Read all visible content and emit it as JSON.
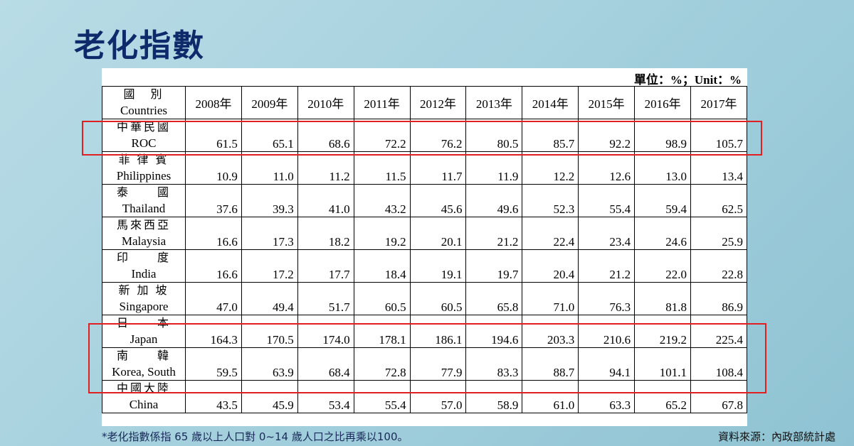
{
  "header": {
    "title": "老化指數",
    "unit": "單位：%；Unit：%"
  },
  "table": {
    "country_zh": "國　別",
    "country_en": "Countries",
    "years": [
      "2008年",
      "2009年",
      "2010年",
      "2011年",
      "2012年",
      "2013年",
      "2014年",
      "2015年",
      "2016年",
      "2017年"
    ],
    "rows": [
      {
        "zh": "中華民國",
        "en": "ROC",
        "values": [
          "61.5",
          "65.1",
          "68.6",
          "72.2",
          "76.2",
          "80.5",
          "85.7",
          "92.2",
          "98.9",
          "105.7"
        ]
      },
      {
        "zh": "菲 律 賓",
        "en": "Philippines",
        "values": [
          "10.9",
          "11.0",
          "11.2",
          "11.5",
          "11.7",
          "11.9",
          "12.2",
          "12.6",
          "13.0",
          "13.4"
        ]
      },
      {
        "zh": "泰　　國",
        "en": "Thailand",
        "values": [
          "37.6",
          "39.3",
          "41.0",
          "43.2",
          "45.6",
          "49.6",
          "52.3",
          "55.4",
          "59.4",
          "62.5"
        ]
      },
      {
        "zh": "馬來西亞",
        "en": "Malaysia",
        "values": [
          "16.6",
          "17.3",
          "18.2",
          "19.2",
          "20.1",
          "21.2",
          "22.4",
          "23.4",
          "24.6",
          "25.9"
        ]
      },
      {
        "zh": "印　　度",
        "en": "India",
        "values": [
          "16.6",
          "17.2",
          "17.7",
          "18.4",
          "19.1",
          "19.7",
          "20.4",
          "21.2",
          "22.0",
          "22.8"
        ]
      },
      {
        "zh": "新 加 坡",
        "en": "Singapore",
        "values": [
          "47.0",
          "49.4",
          "51.7",
          "60.5",
          "60.5",
          "65.8",
          "71.0",
          "76.3",
          "81.8",
          "86.9"
        ]
      },
      {
        "zh": "日　　本",
        "en": "Japan",
        "values": [
          "164.3",
          "170.5",
          "174.0",
          "178.1",
          "186.1",
          "194.6",
          "203.3",
          "210.6",
          "219.2",
          "225.4"
        ]
      },
      {
        "zh": "南　　韓",
        "en": "Korea, South",
        "values": [
          "59.5",
          "63.9",
          "68.4",
          "72.8",
          "77.9",
          "83.3",
          "88.7",
          "94.1",
          "101.1",
          "108.4"
        ]
      },
      {
        "zh": "中國大陸",
        "en": "China",
        "values": [
          "43.5",
          "45.9",
          "53.4",
          "55.4",
          "57.0",
          "58.9",
          "61.0",
          "63.3",
          "65.2",
          "67.8"
        ]
      }
    ]
  },
  "footer": {
    "note": "*老化指數係指 65 歲以上人口對 0~14 歲人口之比再乘以100。",
    "source": "資料來源：內政部統計處"
  }
}
